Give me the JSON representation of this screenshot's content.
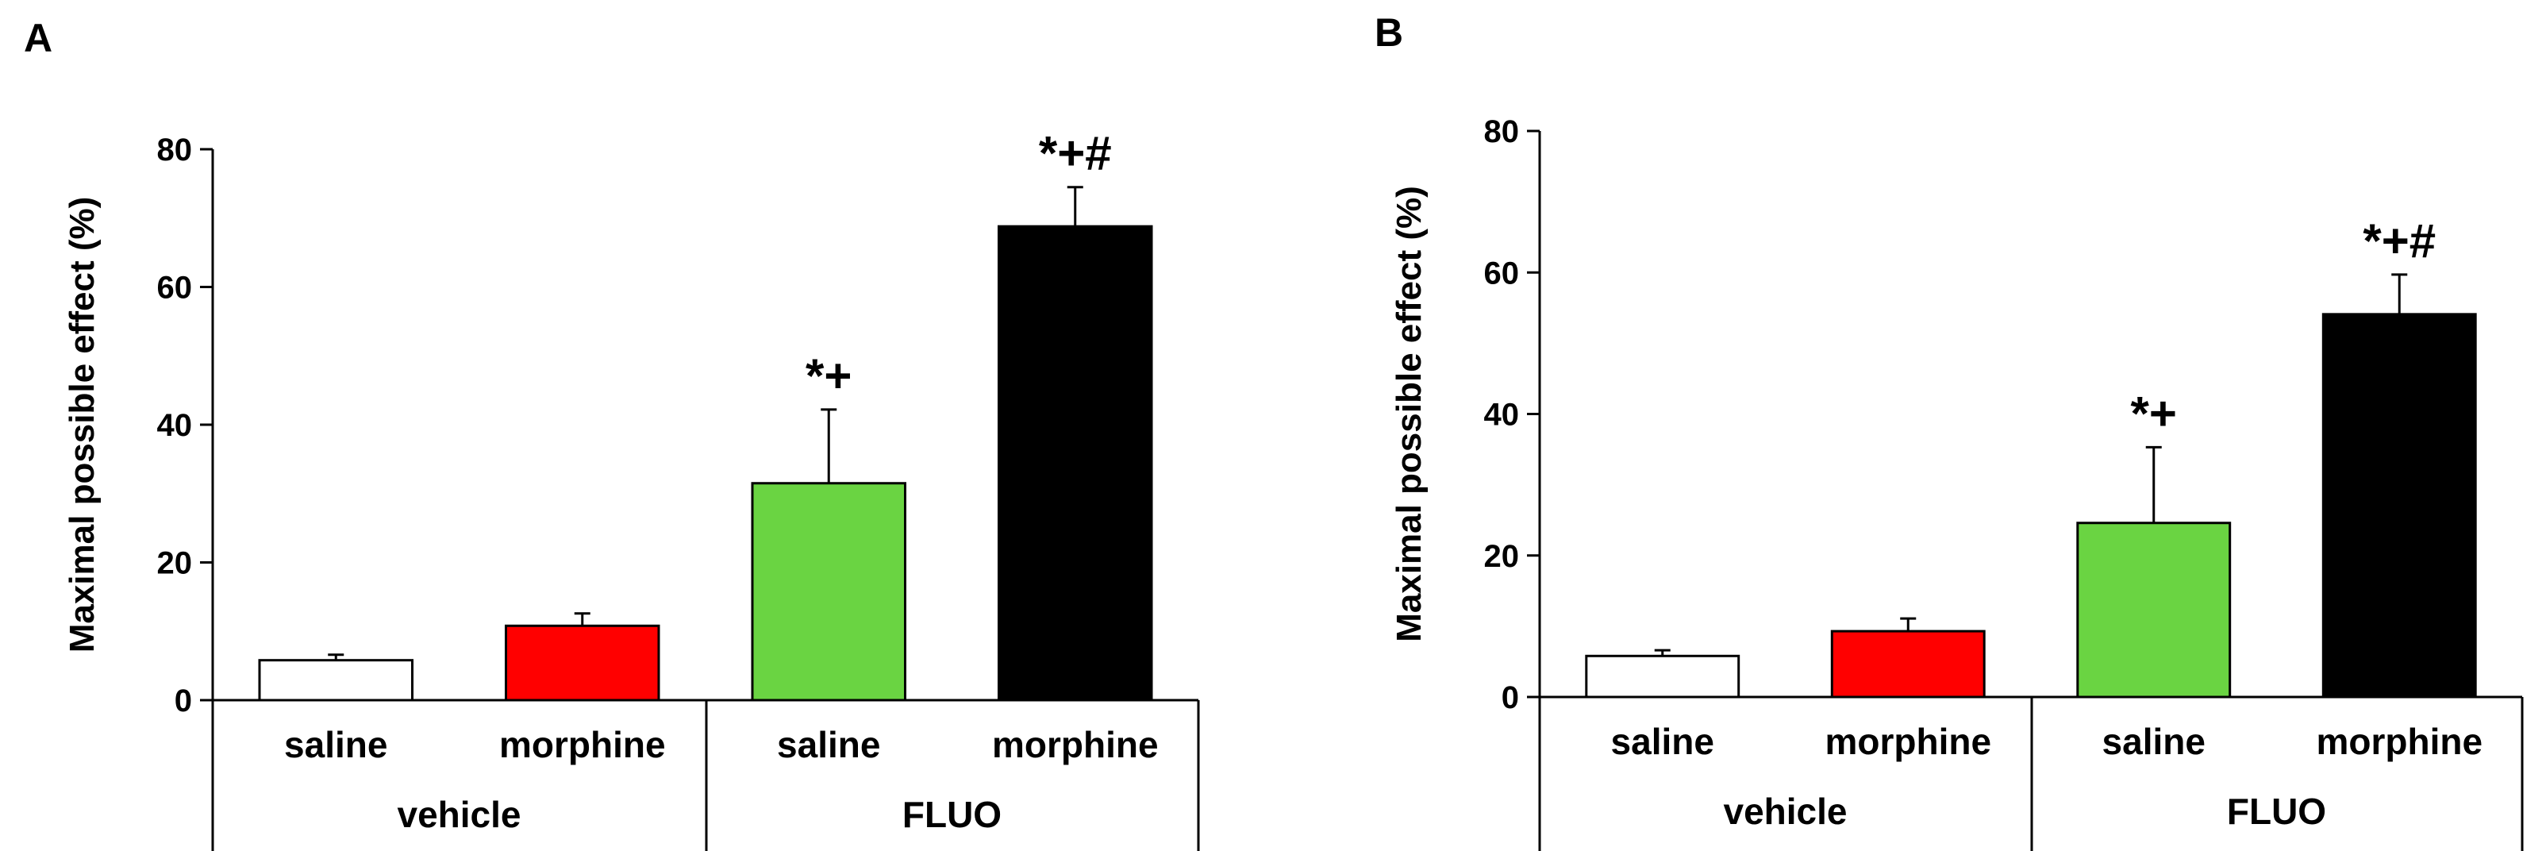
{
  "panels": [
    {
      "letter": "A",
      "chart_data": {
        "type": "bar",
        "ylabel": "Maximal possible effect (%)",
        "ylim": [
          0,
          80
        ],
        "yticks": [
          "0",
          "20",
          "40",
          "60",
          "80"
        ],
        "categories": [
          "saline",
          "morphine",
          "saline",
          "morphine"
        ],
        "groups": [
          {
            "label": "vehicle",
            "span": [
              0,
              1
            ]
          },
          {
            "label": "FLUO",
            "span": [
              2,
              3
            ]
          }
        ],
        "values": [
          5.8,
          10.8,
          31.5,
          68.8
        ],
        "errors": [
          0.8,
          1.8,
          10.7,
          5.7
        ],
        "colors": [
          "#ffffff",
          "#ff0000",
          "#6ad442",
          "#000000"
        ],
        "annotations": [
          "",
          "",
          "*+",
          "*+#"
        ],
        "grid": false
      }
    },
    {
      "letter": "B",
      "chart_data": {
        "type": "bar",
        "ylabel": "Maximal possible effect (%)",
        "ylim": [
          0,
          80
        ],
        "yticks": [
          "0",
          "20",
          "40",
          "60",
          "80"
        ],
        "categories": [
          "saline",
          "morphine",
          "saline",
          "morphine"
        ],
        "groups": [
          {
            "label": "vehicle",
            "span": [
              0,
              1
            ]
          },
          {
            "label": "FLUO",
            "span": [
              2,
              3
            ]
          }
        ],
        "values": [
          5.8,
          9.3,
          24.6,
          54.1
        ],
        "errors": [
          0.8,
          1.8,
          10.7,
          5.6
        ],
        "colors": [
          "#ffffff",
          "#ff0000",
          "#6ad442",
          "#000000"
        ],
        "annotations": [
          "",
          "",
          "*+",
          "*+#"
        ],
        "grid": false
      }
    }
  ]
}
